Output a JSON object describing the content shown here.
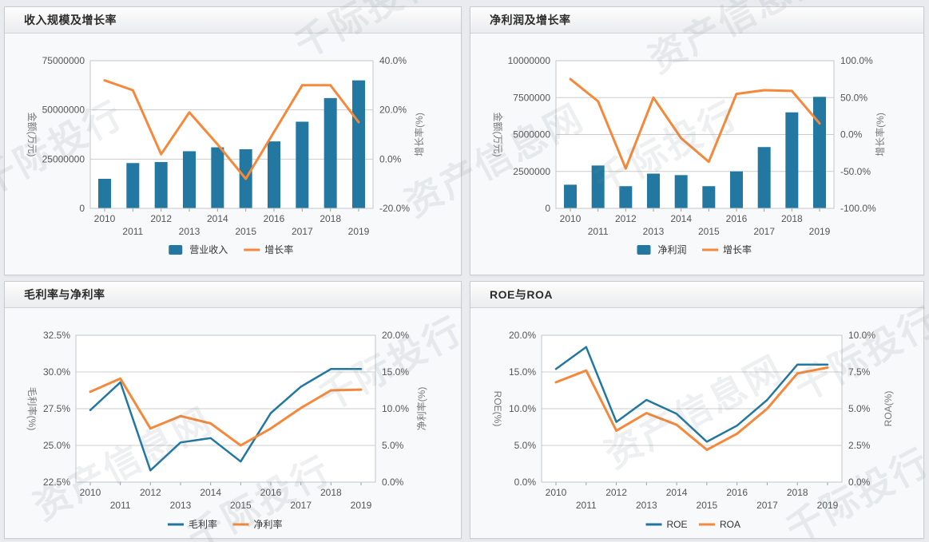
{
  "watermark": {
    "texts": [
      "资产信息网",
      "千际投行"
    ]
  },
  "colors": {
    "bar_blue": "#2278a0",
    "line_blue": "#2277a0",
    "line_orange": "#f5883a",
    "grid": "#cccccc",
    "plot_border": "#c2c6ca",
    "tick_text": "#555555",
    "axis_title": "#777777"
  },
  "chart_data": [
    {
      "key": "revenue_growth",
      "type": "bar+line",
      "title": "收入规模及增长率",
      "categories": [
        "2010",
        "2011",
        "2012",
        "2013",
        "2014",
        "2015",
        "2016",
        "2017",
        "2018",
        "2019"
      ],
      "left_axis": {
        "label": "金额(万元)",
        "min": 0,
        "max": 75000000,
        "tick_values": [
          0,
          25000000,
          50000000,
          75000000
        ],
        "tick_labels": [
          "0",
          "25000000",
          "50000000",
          "75000000"
        ]
      },
      "right_axis": {
        "label": "增长率(%)",
        "min": -20,
        "max": 40,
        "tick_values": [
          -20,
          0,
          20,
          40
        ],
        "tick_labels": [
          "-20.0%",
          "0.0%",
          "20.0%",
          "40.0%"
        ]
      },
      "series": [
        {
          "name": "营业收入",
          "type": "bar",
          "axis": "left",
          "color": "#2278a0",
          "values": [
            15000000,
            23000000,
            23500000,
            29000000,
            31000000,
            30000000,
            34000000,
            44000000,
            56000000,
            65000000
          ]
        },
        {
          "name": "增长率",
          "type": "line",
          "axis": "right",
          "color": "#f5883a",
          "values": [
            32,
            28,
            2,
            19,
            6,
            -8,
            11,
            30,
            30,
            15
          ]
        }
      ]
    },
    {
      "key": "net_profit_growth",
      "type": "bar+line",
      "title": "净利润及增长率",
      "categories": [
        "2010",
        "2011",
        "2012",
        "2013",
        "2014",
        "2015",
        "2016",
        "2017",
        "2018",
        "2019"
      ],
      "left_axis": {
        "label": "金额(万元)",
        "min": 0,
        "max": 10000000,
        "tick_values": [
          0,
          2500000,
          5000000,
          7500000,
          10000000
        ],
        "tick_labels": [
          "0",
          "2500000",
          "5000000",
          "7500000",
          "10000000"
        ]
      },
      "right_axis": {
        "label": "增长率(%)",
        "min": -100,
        "max": 100,
        "tick_values": [
          -100,
          -50,
          0,
          50,
          100
        ],
        "tick_labels": [
          "-100.0%",
          "-50.0%",
          "0.0%",
          "50.0%",
          "100.0%"
        ]
      },
      "series": [
        {
          "name": "净利润",
          "type": "bar",
          "axis": "left",
          "color": "#2278a0",
          "values": [
            1600000,
            2900000,
            1500000,
            2350000,
            2250000,
            1500000,
            2500000,
            4150000,
            6500000,
            7550000
          ]
        },
        {
          "name": "增长率",
          "type": "line",
          "axis": "right",
          "color": "#f5883a",
          "values": [
            75,
            45,
            -46,
            50,
            -5,
            -37,
            55,
            60,
            59,
            15
          ]
        }
      ]
    },
    {
      "key": "margins",
      "type": "line",
      "title": "毛利率与净利率",
      "categories": [
        "2010",
        "2011",
        "2012",
        "2013",
        "2014",
        "2015",
        "2016",
        "2017",
        "2018",
        "2019"
      ],
      "left_axis": {
        "label": "毛利率(%)",
        "min": 22.5,
        "max": 32.5,
        "tick_values": [
          22.5,
          25.0,
          27.5,
          30.0,
          32.5
        ],
        "tick_labels": [
          "22.5%",
          "25.0%",
          "27.5%",
          "30.0%",
          "32.5%"
        ]
      },
      "right_axis": {
        "label": "净利率(%)",
        "min": 0,
        "max": 20,
        "tick_values": [
          0,
          5,
          10,
          15,
          20
        ],
        "tick_labels": [
          "0.0%",
          "5.0%",
          "10.0%",
          "15.0%",
          "20.0%"
        ]
      },
      "series": [
        {
          "name": "毛利率",
          "type": "line",
          "axis": "left",
          "color": "#2277a0",
          "values": [
            27.4,
            29.3,
            23.3,
            25.2,
            25.5,
            23.9,
            27.2,
            29.0,
            30.2,
            30.2
          ]
        },
        {
          "name": "净利率",
          "type": "line",
          "axis": "right",
          "color": "#f5883a",
          "values": [
            12.3,
            14.1,
            7.3,
            9.0,
            8.0,
            5.0,
            7.3,
            10.1,
            12.5,
            12.6
          ]
        }
      ]
    },
    {
      "key": "roe_roa",
      "type": "line",
      "title": "ROE与ROA",
      "categories": [
        "2010",
        "2011",
        "2012",
        "2013",
        "2014",
        "2015",
        "2016",
        "2017",
        "2018",
        "2019"
      ],
      "left_axis": {
        "label": "ROE(%)",
        "min": 0,
        "max": 20,
        "tick_values": [
          0,
          5,
          10,
          15,
          20
        ],
        "tick_labels": [
          "0.0%",
          "5.0%",
          "10.0%",
          "15.0%",
          "20.0%"
        ]
      },
      "right_axis": {
        "label": "ROA(%)",
        "min": 0,
        "max": 10,
        "tick_values": [
          0,
          2.5,
          5,
          7.5,
          10
        ],
        "tick_labels": [
          "0.0%",
          "2.5%",
          "5.0%",
          "7.5%",
          "10.0%"
        ]
      },
      "series": [
        {
          "name": "ROE",
          "type": "line",
          "axis": "left",
          "color": "#2277a0",
          "values": [
            15.4,
            18.4,
            8.2,
            11.2,
            9.3,
            5.5,
            7.7,
            11.2,
            16.0,
            16.0
          ]
        },
        {
          "name": "ROA",
          "type": "line",
          "axis": "right",
          "color": "#f5883a",
          "values": [
            6.8,
            7.6,
            3.5,
            4.7,
            3.9,
            2.2,
            3.3,
            5.0,
            7.4,
            7.8
          ]
        }
      ]
    }
  ]
}
